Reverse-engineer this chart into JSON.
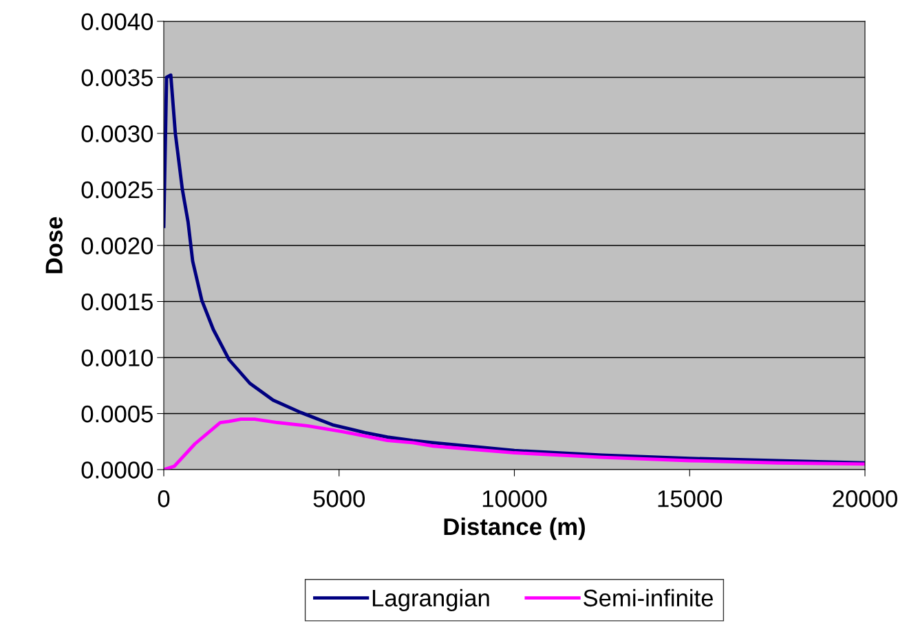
{
  "chart_data": {
    "type": "line",
    "xlabel": "Distance (m)",
    "ylabel": "Dose",
    "xlim": [
      0,
      20000
    ],
    "xticks": [
      0,
      5000,
      10000,
      15000,
      20000
    ],
    "ylim": [
      0,
      0.004
    ],
    "yticks": [
      {
        "value": 0,
        "label": "0.0000"
      },
      {
        "value": 0.0005,
        "label": "0.0005"
      },
      {
        "value": 0.001,
        "label": "0.0010"
      },
      {
        "value": 0.0015,
        "label": "0.0015"
      },
      {
        "value": 0.002,
        "label": "0.0020"
      },
      {
        "value": 0.0025,
        "label": "0.0025"
      },
      {
        "value": 0.003,
        "label": "0.0030"
      },
      {
        "value": 0.0035,
        "label": "0.0035"
      },
      {
        "value": 0.004,
        "label": "0.0040"
      }
    ],
    "grid": "y",
    "legend": "bottom",
    "marker": "none",
    "line_style": "solid",
    "series": [
      {
        "name": "Lagrangian",
        "color": "#000080",
        "x": [
          0,
          80,
          200,
          330,
          530,
          693,
          824,
          1086,
          1413,
          1865,
          2455,
          3120,
          3905,
          4810,
          5730,
          6380,
          7100,
          7690,
          10000,
          12500,
          15000,
          17500,
          20000
        ],
        "values": [
          0.00217,
          0.0035,
          0.00352,
          0.003,
          0.0025,
          0.00221,
          0.00186,
          0.00151,
          0.00125,
          0.00098,
          0.00077,
          0.00062,
          0.00051,
          0.0004,
          0.00033,
          0.00029,
          0.00026,
          0.00024,
          0.00017,
          0.00013,
          0.0001,
          8e-05,
          6e-05
        ]
      },
      {
        "name": "Semi-infinite",
        "color": "#ff00ff",
        "x": [
          0,
          300,
          890,
          1610,
          1865,
          2200,
          2590,
          3240,
          4100,
          5080,
          6380,
          7100,
          7690,
          10000,
          12500,
          15000,
          17500,
          20000
        ],
        "values": [
          0.0,
          3e-05,
          0.00023,
          0.00042,
          0.00043,
          0.00045,
          0.00045,
          0.00042,
          0.00039,
          0.00034,
          0.00026,
          0.00024,
          0.00021,
          0.00015,
          0.00011,
          8e-05,
          6e-05,
          5e-05
        ]
      }
    ]
  }
}
